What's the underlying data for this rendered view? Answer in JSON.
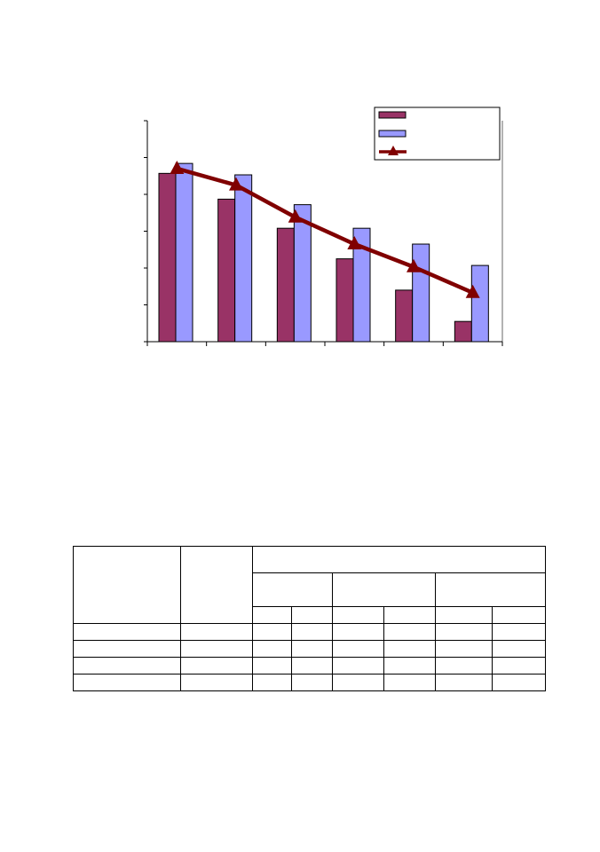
{
  "chart_data": {
    "type": "bar",
    "title": "",
    "xlabel": "",
    "ylabel": "",
    "categories": [
      "",
      "",
      "",
      "",
      "",
      ""
    ],
    "ylim": [
      0,
      6
    ],
    "y_tick_step": 1,
    "grid": false,
    "legend_position": "top-right",
    "series": [
      {
        "kind": "bar",
        "color": "#993366",
        "values": [
          4.57,
          3.87,
          3.08,
          2.25,
          1.4,
          0.55
        ]
      },
      {
        "kind": "bar",
        "color": "#9999ff",
        "values": [
          4.84,
          4.53,
          3.72,
          3.08,
          2.65,
          2.07
        ]
      },
      {
        "kind": "line",
        "marker": "triangle",
        "color": "#800000",
        "values": [
          4.7,
          4.25,
          3.38,
          2.65,
          2.03,
          1.33
        ]
      }
    ]
  },
  "table": {
    "rows": [
      [
        "",
        "",
        "",
        "",
        "",
        "",
        "",
        ""
      ],
      [
        "",
        "",
        "",
        "",
        "",
        "",
        "",
        ""
      ],
      [
        "",
        "",
        "",
        "",
        "",
        "",
        "",
        ""
      ],
      [
        "",
        "",
        "",
        "",
        "",
        "",
        "",
        ""
      ]
    ]
  }
}
